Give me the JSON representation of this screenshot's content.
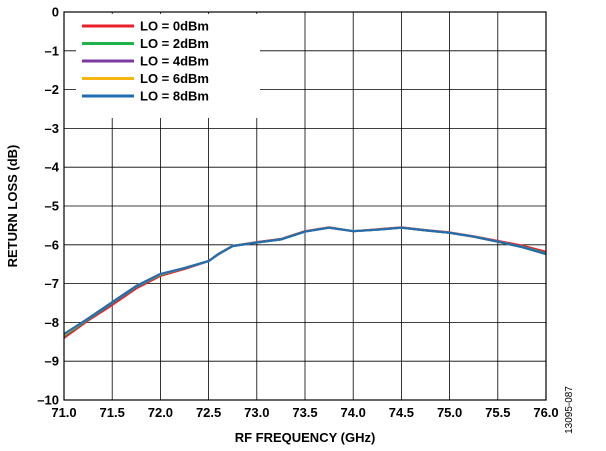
{
  "chart_data": {
    "type": "line",
    "title": "",
    "xlabel": "RF FREQUENCY (GHz)",
    "ylabel": "RETURN LOSS (dB)",
    "xlim": [
      71.0,
      76.0
    ],
    "ylim": [
      -10,
      0
    ],
    "xticks": [
      71.0,
      71.5,
      72.0,
      72.5,
      73.0,
      73.5,
      74.0,
      74.5,
      75.0,
      75.5,
      76.0
    ],
    "xtick_labels": [
      "71.0",
      "71.5",
      "72.0",
      "72.5",
      "73.0",
      "73.5",
      "74.0",
      "74.5",
      "75.0",
      "75.5",
      "76.0"
    ],
    "yticks": [
      0,
      -1,
      -2,
      -3,
      -4,
      -5,
      -6,
      -7,
      -8,
      -9,
      -10
    ],
    "ytick_labels": [
      "0",
      "–1",
      "–2",
      "–3",
      "–4",
      "–5",
      "–6",
      "–7",
      "–8",
      "–9",
      "–10"
    ],
    "grid": true,
    "legend_position": "top-left",
    "figure_id": "13095-087",
    "series": [
      {
        "name": "LO = 0dBm",
        "color": "#e8202a",
        "x": [
          71.0,
          71.25,
          71.5,
          71.75,
          72.0,
          72.25,
          72.5,
          72.6,
          72.75,
          73.0,
          73.25,
          73.5,
          73.75,
          74.0,
          74.25,
          74.5,
          74.75,
          75.0,
          75.25,
          75.5,
          75.75,
          76.0
        ],
        "y": [
          -8.4,
          -7.95,
          -7.55,
          -7.12,
          -6.8,
          -6.62,
          -6.42,
          -6.25,
          -6.03,
          -5.93,
          -5.85,
          -5.65,
          -5.55,
          -5.65,
          -5.6,
          -5.55,
          -5.62,
          -5.68,
          -5.78,
          -5.9,
          -6.02,
          -6.18
        ]
      },
      {
        "name": "LO = 2dBm",
        "color": "#1db34a",
        "x": [
          71.0,
          71.25,
          71.5,
          71.75,
          72.0,
          72.25,
          72.5,
          72.6,
          72.75,
          73.0,
          73.25,
          73.5,
          73.75,
          74.0,
          74.25,
          74.5,
          74.75,
          75.0,
          75.25,
          75.5,
          75.75,
          76.0
        ],
        "y": [
          -8.35,
          -7.92,
          -7.5,
          -7.08,
          -6.77,
          -6.6,
          -6.42,
          -6.24,
          -6.03,
          -5.94,
          -5.86,
          -5.66,
          -5.56,
          -5.65,
          -5.61,
          -5.56,
          -5.63,
          -5.69,
          -5.79,
          -5.92,
          -6.05,
          -6.22
        ]
      },
      {
        "name": "LO = 4dBm",
        "color": "#7a3aa0",
        "x": [
          71.0,
          71.25,
          71.5,
          71.75,
          72.0,
          72.25,
          72.5,
          72.6,
          72.75,
          73.0,
          73.25,
          73.5,
          73.75,
          74.0,
          74.25,
          74.5,
          74.75,
          75.0,
          75.25,
          75.5,
          75.75,
          76.0
        ],
        "y": [
          -8.33,
          -7.91,
          -7.49,
          -7.07,
          -6.76,
          -6.6,
          -6.42,
          -6.24,
          -6.03,
          -5.94,
          -5.86,
          -5.66,
          -5.56,
          -5.65,
          -5.61,
          -5.56,
          -5.63,
          -5.69,
          -5.79,
          -5.92,
          -6.06,
          -6.23
        ]
      },
      {
        "name": "LO = 6dBm",
        "color": "#f7b512",
        "x": [
          71.0,
          71.25,
          71.5,
          71.75,
          72.0,
          72.25,
          72.5,
          72.6,
          72.75,
          73.0,
          73.25,
          73.5,
          73.75,
          74.0,
          74.25,
          74.5,
          74.75,
          75.0,
          75.25,
          75.5,
          75.75,
          76.0
        ],
        "y": [
          -8.32,
          -7.9,
          -7.48,
          -7.06,
          -6.76,
          -6.6,
          -6.42,
          -6.24,
          -6.03,
          -5.94,
          -5.86,
          -5.66,
          -5.56,
          -5.65,
          -5.61,
          -5.56,
          -5.63,
          -5.69,
          -5.79,
          -5.92,
          -6.06,
          -6.24
        ]
      },
      {
        "name": "LO = 8dBm",
        "color": "#1f6db3",
        "x": [
          71.0,
          71.25,
          71.5,
          71.75,
          72.0,
          72.25,
          72.5,
          72.6,
          72.75,
          73.0,
          73.25,
          73.5,
          73.75,
          74.0,
          74.25,
          74.5,
          74.75,
          75.0,
          75.25,
          75.5,
          75.75,
          76.0
        ],
        "y": [
          -8.3,
          -7.9,
          -7.48,
          -7.06,
          -6.75,
          -6.6,
          -6.42,
          -6.24,
          -6.03,
          -5.94,
          -5.86,
          -5.66,
          -5.56,
          -5.65,
          -5.61,
          -5.56,
          -5.63,
          -5.69,
          -5.79,
          -5.92,
          -6.06,
          -6.24
        ]
      }
    ]
  }
}
